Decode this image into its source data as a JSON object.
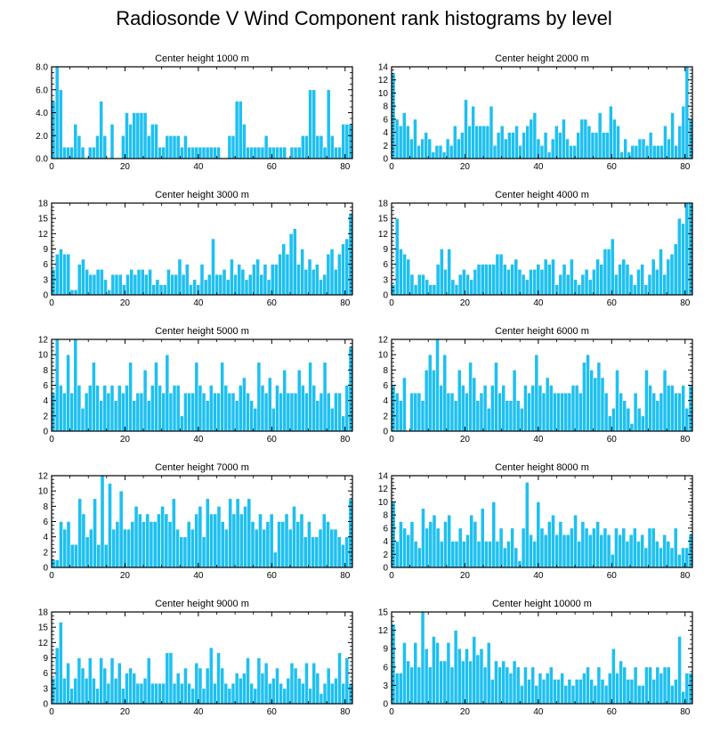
{
  "title": "Radiosonde V Wind Component rank histograms by level",
  "colors": {
    "bar": "#1EC0F0",
    "bar_edge": "#FFFFFF",
    "axis": "#000000"
  },
  "chart_data": [
    {
      "type": "bar",
      "title": "Center height 1000 m",
      "x_ticks": [
        "0",
        "20",
        "40",
        "60",
        "80"
      ],
      "y_ticks": [
        "0.0",
        "2.0",
        "4.0",
        "6.0",
        "8.0"
      ],
      "ylim": [
        0,
        8
      ],
      "values": [
        5,
        8,
        6,
        1,
        1,
        1,
        3,
        2,
        1,
        0,
        1,
        1,
        2,
        5,
        2,
        0,
        3,
        0,
        0,
        2,
        4,
        3,
        4,
        4,
        4,
        4,
        2,
        3,
        3,
        1,
        1,
        2,
        2,
        2,
        2,
        1,
        2,
        1,
        1,
        1,
        1,
        1,
        1,
        1,
        1,
        1,
        0,
        0,
        2,
        2,
        5,
        5,
        3,
        1,
        1,
        1,
        1,
        1,
        2,
        1,
        1,
        1,
        1,
        1,
        0,
        1,
        1,
        1,
        2,
        2,
        6,
        6,
        2,
        2,
        1,
        6,
        2,
        1,
        1,
        3,
        3,
        3
      ]
    },
    {
      "type": "bar",
      "title": "Center height 2000 m",
      "x_ticks": [
        "0",
        "20",
        "40",
        "60",
        "80"
      ],
      "y_ticks": [
        "0",
        "2",
        "4",
        "6",
        "8",
        "10",
        "12",
        "14"
      ],
      "ylim": [
        0,
        14
      ],
      "values": [
        13,
        6,
        5,
        7,
        5,
        3,
        6,
        2,
        3,
        4,
        3,
        1,
        2,
        2,
        1,
        3,
        2,
        5,
        3,
        4,
        9,
        5,
        8,
        5,
        5,
        5,
        5,
        8,
        2,
        4,
        5,
        3,
        4,
        4,
        5,
        2,
        4,
        5,
        6,
        7,
        3,
        2,
        4,
        1,
        3,
        5,
        4,
        6,
        3,
        2,
        2,
        4,
        6,
        6,
        5,
        4,
        4,
        7,
        4,
        4,
        8,
        6,
        5,
        1,
        3,
        1,
        2,
        2,
        3,
        3,
        2,
        4,
        2,
        2,
        2,
        5,
        3,
        7,
        2,
        5,
        8,
        14,
        6
      ]
    },
    {
      "type": "bar",
      "title": "Center height 3000 m",
      "x_ticks": [
        "0",
        "20",
        "40",
        "60",
        "80"
      ],
      "y_ticks": [
        "0",
        "3",
        "6",
        "9",
        "12",
        "15",
        "18"
      ],
      "ylim": [
        0,
        18
      ],
      "values": [
        5,
        8,
        9,
        8,
        8,
        1,
        1,
        6,
        7,
        5,
        4,
        4,
        5,
        5,
        3,
        1,
        4,
        4,
        4,
        2,
        4,
        5,
        4,
        5,
        5,
        4,
        5,
        2,
        3,
        2,
        2,
        5,
        4,
        4,
        7,
        4,
        6,
        2,
        3,
        2,
        6,
        3,
        4,
        11,
        4,
        4,
        5,
        3,
        7,
        4,
        6,
        5,
        3,
        4,
        6,
        7,
        4,
        6,
        3,
        6,
        6,
        8,
        10,
        8,
        12,
        13,
        6,
        9,
        5,
        7,
        5,
        6,
        3,
        4,
        8,
        9,
        5,
        8,
        10,
        11,
        16
      ]
    },
    {
      "type": "bar",
      "title": "Center height 4000 m",
      "x_ticks": [
        "0",
        "20",
        "40",
        "60",
        "80"
      ],
      "y_ticks": [
        "0",
        "3",
        "6",
        "9",
        "12",
        "15",
        "18"
      ],
      "ylim": [
        0,
        18
      ],
      "values": [
        2,
        15,
        9,
        8,
        7,
        4,
        2,
        4,
        4,
        3,
        2,
        2,
        6,
        9,
        5,
        9,
        3,
        2,
        4,
        5,
        4,
        3,
        5,
        6,
        6,
        6,
        6,
        6,
        8,
        8,
        6,
        5,
        6,
        7,
        5,
        4,
        3,
        5,
        5,
        6,
        5,
        7,
        6,
        7,
        2,
        4,
        6,
        4,
        7,
        3,
        2,
        4,
        5,
        3,
        5,
        7,
        6,
        9,
        9,
        11,
        4,
        6,
        7,
        6,
        4,
        2,
        5,
        6,
        2,
        4,
        7,
        5,
        9,
        4,
        7,
        8,
        10,
        15,
        14,
        18,
        18
      ]
    },
    {
      "type": "bar",
      "title": "Center height 5000 m",
      "x_ticks": [
        "0",
        "20",
        "40",
        "60",
        "80"
      ],
      "y_ticks": [
        "0",
        "2",
        "4",
        "6",
        "8",
        "10",
        "12"
      ],
      "ylim": [
        0,
        12
      ],
      "values": [
        5,
        12,
        6,
        5,
        10,
        5,
        12,
        6,
        3,
        5,
        6,
        9,
        6,
        4,
        6,
        5,
        6,
        4,
        6,
        5,
        6,
        9,
        4,
        5,
        5,
        8,
        4,
        6,
        9,
        6,
        5,
        10,
        5,
        6,
        6,
        2,
        5,
        5,
        5,
        9,
        6,
        5,
        4,
        6,
        5,
        5,
        9,
        6,
        5,
        5,
        4,
        6,
        7,
        5,
        4,
        3,
        9,
        6,
        5,
        7,
        3,
        6,
        5,
        8,
        5,
        5,
        5,
        8,
        6,
        5,
        9,
        6,
        4,
        5,
        9,
        5,
        3,
        5,
        5,
        2,
        6,
        11
      ]
    },
    {
      "type": "bar",
      "title": "Center height 6000 m",
      "x_ticks": [
        "0",
        "20",
        "40",
        "60",
        "80"
      ],
      "y_ticks": [
        "0",
        "2",
        "4",
        "6",
        "8",
        "10",
        "12"
      ],
      "ylim": [
        0,
        12
      ],
      "values": [
        6,
        5,
        4,
        7,
        0,
        5,
        5,
        5,
        4,
        8,
        10,
        8,
        12,
        6,
        10,
        5,
        5,
        4,
        8,
        6,
        5,
        9,
        7,
        4,
        5,
        6,
        3,
        6,
        9,
        5,
        6,
        4,
        4,
        8,
        4,
        3,
        6,
        5,
        6,
        10,
        6,
        5,
        7,
        6,
        5,
        5,
        5,
        5,
        5,
        6,
        6,
        5,
        9,
        10,
        8,
        7,
        9,
        7,
        5,
        2,
        3,
        8,
        5,
        4,
        3,
        1,
        5,
        3,
        2,
        8,
        6,
        5,
        4,
        5,
        8,
        6,
        6,
        5,
        5,
        6,
        3,
        6
      ]
    },
    {
      "type": "bar",
      "title": "Center height 7000 m",
      "x_ticks": [
        "0",
        "20",
        "40",
        "60",
        "80"
      ],
      "y_ticks": [
        "0",
        "2",
        "4",
        "6",
        "8",
        "10",
        "12"
      ],
      "ylim": [
        0,
        12
      ],
      "values": [
        1,
        1,
        6,
        5,
        6,
        3,
        3,
        9,
        7,
        4,
        5,
        9,
        3,
        12,
        3,
        11,
        5,
        6,
        10,
        5,
        5,
        6,
        8,
        7,
        6,
        7,
        6,
        6,
        7,
        8,
        7,
        6,
        9,
        5,
        4,
        4,
        6,
        5,
        7,
        8,
        4,
        9,
        7,
        7,
        8,
        6,
        5,
        9,
        7,
        9,
        7,
        8,
        9,
        6,
        5,
        7,
        5,
        6,
        7,
        2,
        6,
        6,
        7,
        5,
        8,
        6,
        7,
        4,
        6,
        4,
        4,
        5,
        7,
        6,
        5,
        5,
        4,
        3,
        4,
        9
      ]
    },
    {
      "type": "bar",
      "title": "Center height 8000 m",
      "x_ticks": [
        "0",
        "20",
        "40",
        "60",
        "80"
      ],
      "y_ticks": [
        "0",
        "2",
        "4",
        "6",
        "8",
        "10",
        "12",
        "14"
      ],
      "ylim": [
        0,
        14
      ],
      "values": [
        10,
        4,
        7,
        6,
        5,
        7,
        4,
        3,
        9,
        6,
        7,
        8,
        6,
        4,
        7,
        8,
        4,
        4,
        6,
        4,
        5,
        8,
        7,
        4,
        9,
        4,
        4,
        10,
        4,
        6,
        3,
        4,
        6,
        3,
        1,
        6,
        13,
        5,
        4,
        10,
        6,
        5,
        7,
        8,
        5,
        7,
        5,
        5,
        6,
        8,
        4,
        7,
        6,
        5,
        6,
        7,
        5,
        6,
        5,
        2,
        6,
        5,
        6,
        4,
        5,
        6,
        4,
        5,
        3,
        6,
        6,
        4,
        3,
        5,
        4,
        3,
        6,
        2,
        3,
        3,
        5
      ]
    },
    {
      "type": "bar",
      "title": "Center height 9000 m",
      "x_ticks": [
        "0",
        "20",
        "40",
        "60",
        "80"
      ],
      "y_ticks": [
        "0",
        "3",
        "6",
        "9",
        "12",
        "15",
        "18"
      ],
      "ylim": [
        0,
        18
      ],
      "values": [
        5,
        11,
        16,
        5,
        8,
        3,
        5,
        9,
        7,
        5,
        9,
        5,
        3,
        9,
        7,
        4,
        9,
        5,
        8,
        3,
        6,
        7,
        6,
        4,
        4,
        5,
        9,
        4,
        4,
        4,
        4,
        10,
        10,
        4,
        6,
        4,
        7,
        4,
        3,
        8,
        7,
        3,
        7,
        11,
        4,
        10,
        7,
        4,
        3,
        4,
        6,
        5,
        6,
        9,
        4,
        3,
        9,
        6,
        8,
        4,
        5,
        7,
        4,
        3,
        5,
        8,
        7,
        5,
        4,
        8,
        3,
        8,
        6,
        2,
        4,
        7,
        4,
        5,
        10,
        4,
        9,
        4
      ]
    },
    {
      "type": "bar",
      "title": "Center height 10000 m",
      "x_ticks": [
        "0",
        "20",
        "40",
        "60",
        "80"
      ],
      "y_ticks": [
        "0",
        "3",
        "6",
        "9",
        "12",
        "15"
      ],
      "ylim": [
        0,
        15
      ],
      "values": [
        13,
        5,
        5,
        10,
        7,
        6,
        10,
        6,
        15,
        9,
        6,
        11,
        10,
        7,
        7,
        10,
        6,
        12,
        9,
        7,
        9,
        7,
        11,
        8,
        9,
        6,
        10,
        4,
        7,
        6,
        7,
        6,
        5,
        7,
        6,
        3,
        6,
        4,
        6,
        3,
        5,
        4,
        5,
        6,
        4,
        4,
        5,
        3,
        4,
        3,
        4,
        4,
        5,
        6,
        4,
        3,
        6,
        4,
        3,
        5,
        9,
        5,
        7,
        6,
        4,
        4,
        6,
        3,
        3,
        6,
        6,
        4,
        6,
        5,
        6,
        6,
        3,
        4,
        11,
        2,
        5,
        5
      ]
    }
  ]
}
